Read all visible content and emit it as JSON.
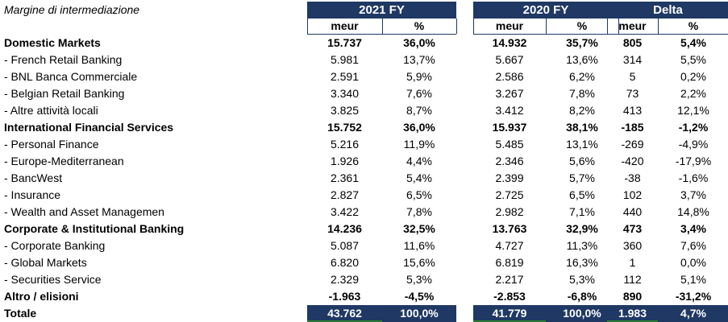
{
  "caption": "Margine di intermediazione",
  "groups": [
    {
      "label": "2021 FY",
      "sub": [
        "meur",
        "%"
      ]
    },
    {
      "label": "2020 FY",
      "sub": [
        "meur",
        "%"
      ]
    },
    {
      "label": "Delta",
      "sub": [
        "meur",
        "%"
      ]
    }
  ],
  "rows": [
    {
      "label": "Domestic Markets",
      "style": "bold",
      "v": [
        "15.737",
        "36,0%",
        "14.932",
        "35,7%",
        "805",
        "5,4%"
      ]
    },
    {
      "label": " - French Retail Banking",
      "style": "normal",
      "v": [
        "5.981",
        "13,7%",
        "5.667",
        "13,6%",
        "314",
        "5,5%"
      ]
    },
    {
      "label": " - BNL Banca Commerciale",
      "style": "normal",
      "v": [
        "2.591",
        "5,9%",
        "2.586",
        "6,2%",
        "5",
        "0,2%"
      ]
    },
    {
      "label": " - Belgian Retail Banking",
      "style": "normal",
      "v": [
        "3.340",
        "7,6%",
        "3.267",
        "7,8%",
        "73",
        "2,2%"
      ]
    },
    {
      "label": " - Altre attività locali",
      "style": "normal",
      "v": [
        "3.825",
        "8,7%",
        "3.412",
        "8,2%",
        "413",
        "12,1%"
      ]
    },
    {
      "label": "International Financial Services",
      "style": "bold",
      "v": [
        "15.752",
        "36,0%",
        "15.937",
        "38,1%",
        "-185",
        "-1,2%"
      ]
    },
    {
      "label": " - Personal Finance",
      "style": "normal",
      "v": [
        "5.216",
        "11,9%",
        "5.485",
        "13,1%",
        "-269",
        "-4,9%"
      ]
    },
    {
      "label": " - Europe-Mediterranean",
      "style": "normal",
      "v": [
        "1.926",
        "4,4%",
        "2.346",
        "5,6%",
        "-420",
        "-17,9%"
      ]
    },
    {
      "label": " - BancWest",
      "style": "normal",
      "v": [
        "2.361",
        "5,4%",
        "2.399",
        "5,7%",
        "-38",
        "-1,6%"
      ]
    },
    {
      "label": " - Insurance",
      "style": "normal",
      "v": [
        "2.827",
        "6,5%",
        "2.725",
        "6,5%",
        "102",
        "3,7%"
      ]
    },
    {
      "label": " - Wealth and Asset Managemen",
      "style": "normal",
      "v": [
        "3.422",
        "7,8%",
        "2.982",
        "7,1%",
        "440",
        "14,8%"
      ]
    },
    {
      "label": "Corporate & Institutional Banking",
      "style": "bold",
      "v": [
        "14.236",
        "32,5%",
        "13.763",
        "32,9%",
        "473",
        "3,4%"
      ]
    },
    {
      "label": " - Corporate Banking",
      "style": "normal",
      "v": [
        "5.087",
        "11,6%",
        "4.727",
        "11,3%",
        "360",
        "7,6%"
      ]
    },
    {
      "label": " - Global Markets",
      "style": "normal",
      "v": [
        "6.820",
        "15,6%",
        "6.819",
        "16,3%",
        "1",
        "0,0%"
      ]
    },
    {
      "label": " - Securities Service",
      "style": "normal",
      "v": [
        "2.329",
        "5,3%",
        "2.217",
        "5,3%",
        "112",
        "5,1%"
      ]
    },
    {
      "label": "Altro / elisioni",
      "style": "bold",
      "v": [
        "-1.963",
        "-4,5%",
        "-2.853",
        "-6,8%",
        "890",
        "-31,2%"
      ]
    },
    {
      "label": "Totale",
      "style": "total",
      "v": [
        "43.762",
        "100,0%",
        "41.779",
        "100,0%",
        "1.983",
        "4,7%"
      ]
    }
  ]
}
